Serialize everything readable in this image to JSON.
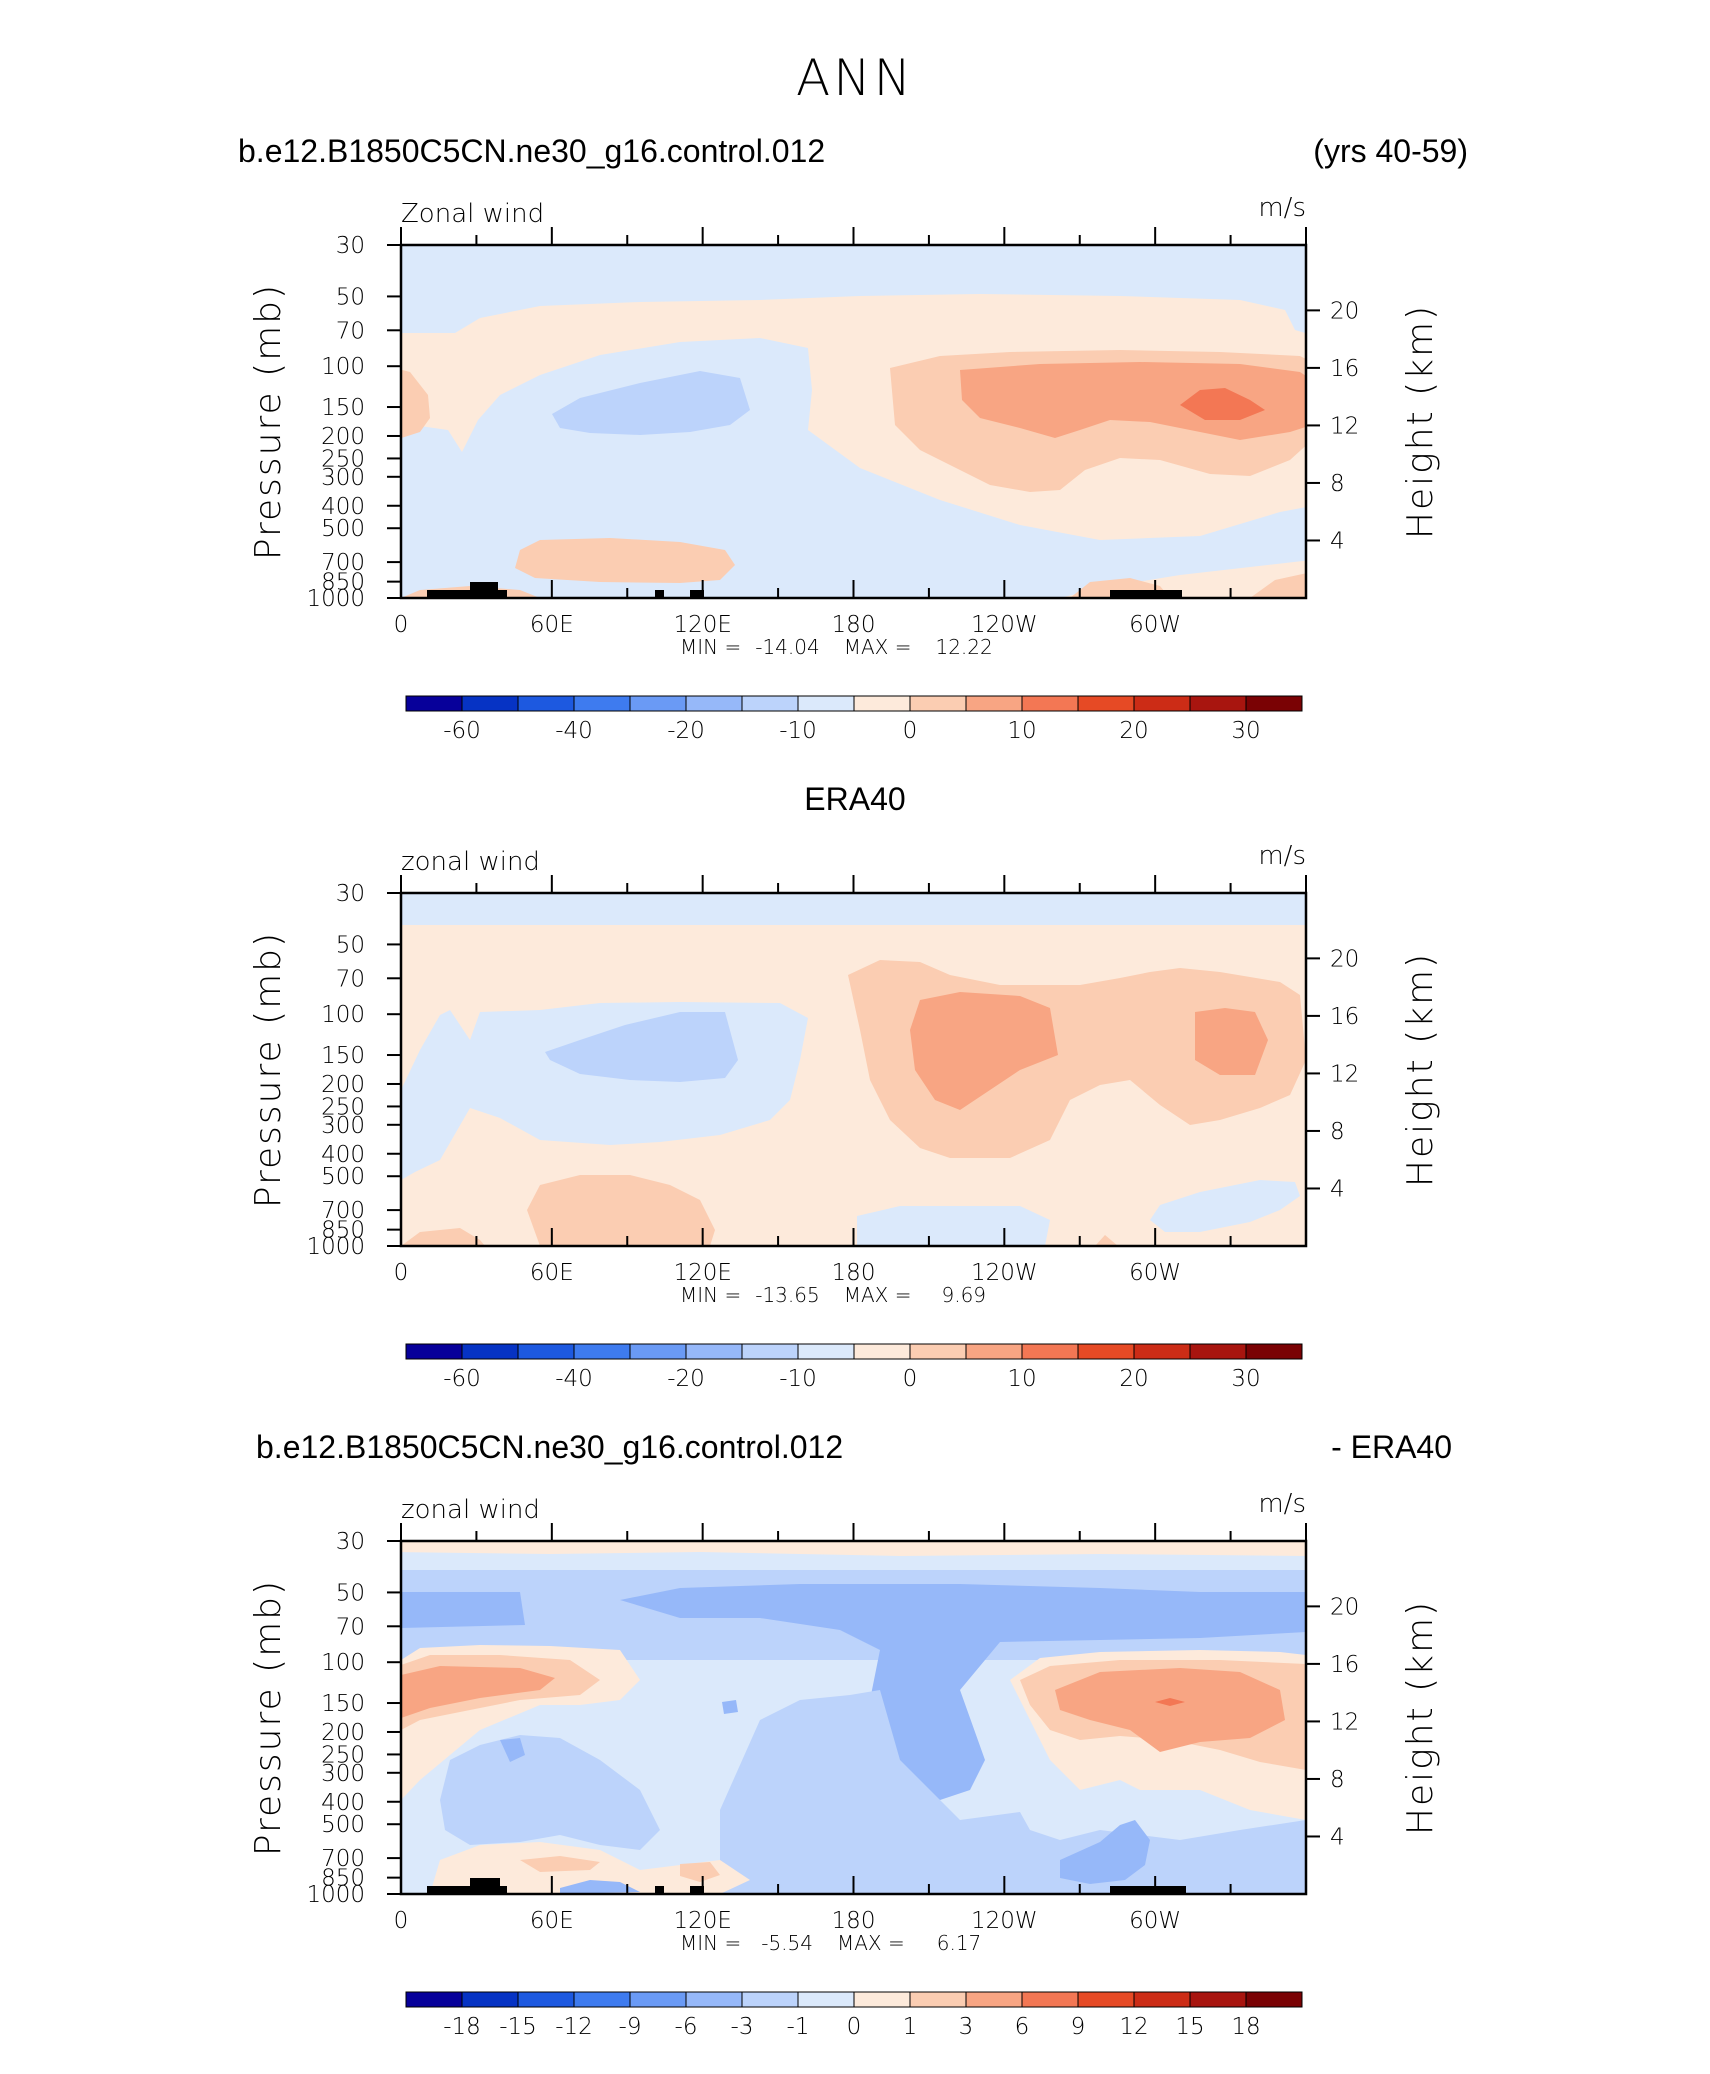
{
  "title": "ANN",
  "chart_data": [
    {
      "type": "heatmap",
      "left_title": "b.e12.B1850C5CN.ne30_g16.control.012",
      "right_title": "(yrs 40-59)",
      "variable_label": "Zonal wind",
      "units": "m/s",
      "ylabel": "Pressure (mb)",
      "y2label": "Height (km)",
      "x_ticks": [
        "0",
        "60E",
        "120E",
        "180",
        "120W",
        "60W"
      ],
      "y_ticks": [
        "30",
        "50",
        "70",
        "100",
        "150",
        "200",
        "250",
        "300",
        "400",
        "500",
        "700",
        "850",
        "1000"
      ],
      "y2_ticks": [
        "20",
        "16",
        "12",
        "8",
        "4"
      ],
      "min_label": "MIN =",
      "min": "-14.04",
      "max_label": "MAX =",
      "max": "12.22",
      "colorbar_labels": [
        "-60",
        "-40",
        "-20",
        "-10",
        "0",
        "10",
        "20",
        "30"
      ],
      "colorbar_levels": [
        -70,
        -60,
        -50,
        -40,
        -30,
        -20,
        -15,
        -10,
        -5,
        0,
        5,
        10,
        15,
        20,
        25,
        30,
        35
      ],
      "colors": [
        "#07009a",
        "#0633c4",
        "#1d59e0",
        "#3e7bef",
        "#6a9af5",
        "#96b8f9",
        "#bcd3fb",
        "#dbe9fb",
        "#fdeadb",
        "#fbcdb2",
        "#f8a583",
        "#f37754",
        "#e64a25",
        "#cc2c16",
        "#a8150f",
        "#7a0204"
      ]
    },
    {
      "type": "heatmap",
      "center_title": "ERA40",
      "variable_label": "zonal wind",
      "units": "m/s",
      "ylabel": "Pressure (mb)",
      "y2label": "Height (km)",
      "x_ticks": [
        "0",
        "60E",
        "120E",
        "180",
        "120W",
        "60W"
      ],
      "y_ticks": [
        "30",
        "50",
        "70",
        "100",
        "150",
        "200",
        "250",
        "300",
        "400",
        "500",
        "700",
        "850",
        "1000"
      ],
      "y2_ticks": [
        "20",
        "16",
        "12",
        "8",
        "4"
      ],
      "min_label": "MIN =",
      "min": "-13.65",
      "max_label": "MAX =",
      "max": "9.69",
      "colorbar_labels": [
        "-60",
        "-40",
        "-20",
        "-10",
        "0",
        "10",
        "20",
        "30"
      ],
      "colorbar_levels": [
        -70,
        -60,
        -50,
        -40,
        -30,
        -20,
        -15,
        -10,
        -5,
        0,
        5,
        10,
        15,
        20,
        25,
        30,
        35
      ],
      "colors": [
        "#07009a",
        "#0633c4",
        "#1d59e0",
        "#3e7bef",
        "#6a9af5",
        "#96b8f9",
        "#bcd3fb",
        "#dbe9fb",
        "#fdeadb",
        "#fbcdb2",
        "#f8a583",
        "#f37754",
        "#e64a25",
        "#cc2c16",
        "#a8150f",
        "#7a0204"
      ]
    },
    {
      "type": "heatmap",
      "left_title": "b.e12.B1850C5CN.ne30_g16.control.012",
      "right_title": "- ERA40",
      "variable_label": "zonal wind",
      "units": "m/s",
      "ylabel": "Pressure (mb)",
      "y2label": "Height (km)",
      "x_ticks": [
        "0",
        "60E",
        "120E",
        "180",
        "120W",
        "60W"
      ],
      "y_ticks": [
        "30",
        "50",
        "70",
        "100",
        "150",
        "200",
        "250",
        "300",
        "400",
        "500",
        "700",
        "850",
        "1000"
      ],
      "y2_ticks": [
        "20",
        "16",
        "12",
        "8",
        "4"
      ],
      "min_label": "MIN =",
      "min": "-5.54",
      "max_label": "MAX =",
      "max": "6.17",
      "colorbar_labels": [
        "-18",
        "-15",
        "-12",
        "-9",
        "-6",
        "-3",
        "-1",
        "0",
        "1",
        "3",
        "6",
        "9",
        "12",
        "15",
        "18"
      ],
      "colorbar_levels": [
        -21,
        -18,
        -15,
        -12,
        -9,
        -6,
        -3,
        -1,
        0,
        1,
        3,
        6,
        9,
        12,
        15,
        18,
        21
      ],
      "colors": [
        "#07009a",
        "#0633c4",
        "#1d59e0",
        "#3e7bef",
        "#6a9af5",
        "#96b8f9",
        "#bcd3fb",
        "#dbe9fb",
        "#fdeadb",
        "#fbcdb2",
        "#f8a583",
        "#f37754",
        "#e64a25",
        "#cc2c16",
        "#a8150f",
        "#7a0204"
      ]
    }
  ]
}
